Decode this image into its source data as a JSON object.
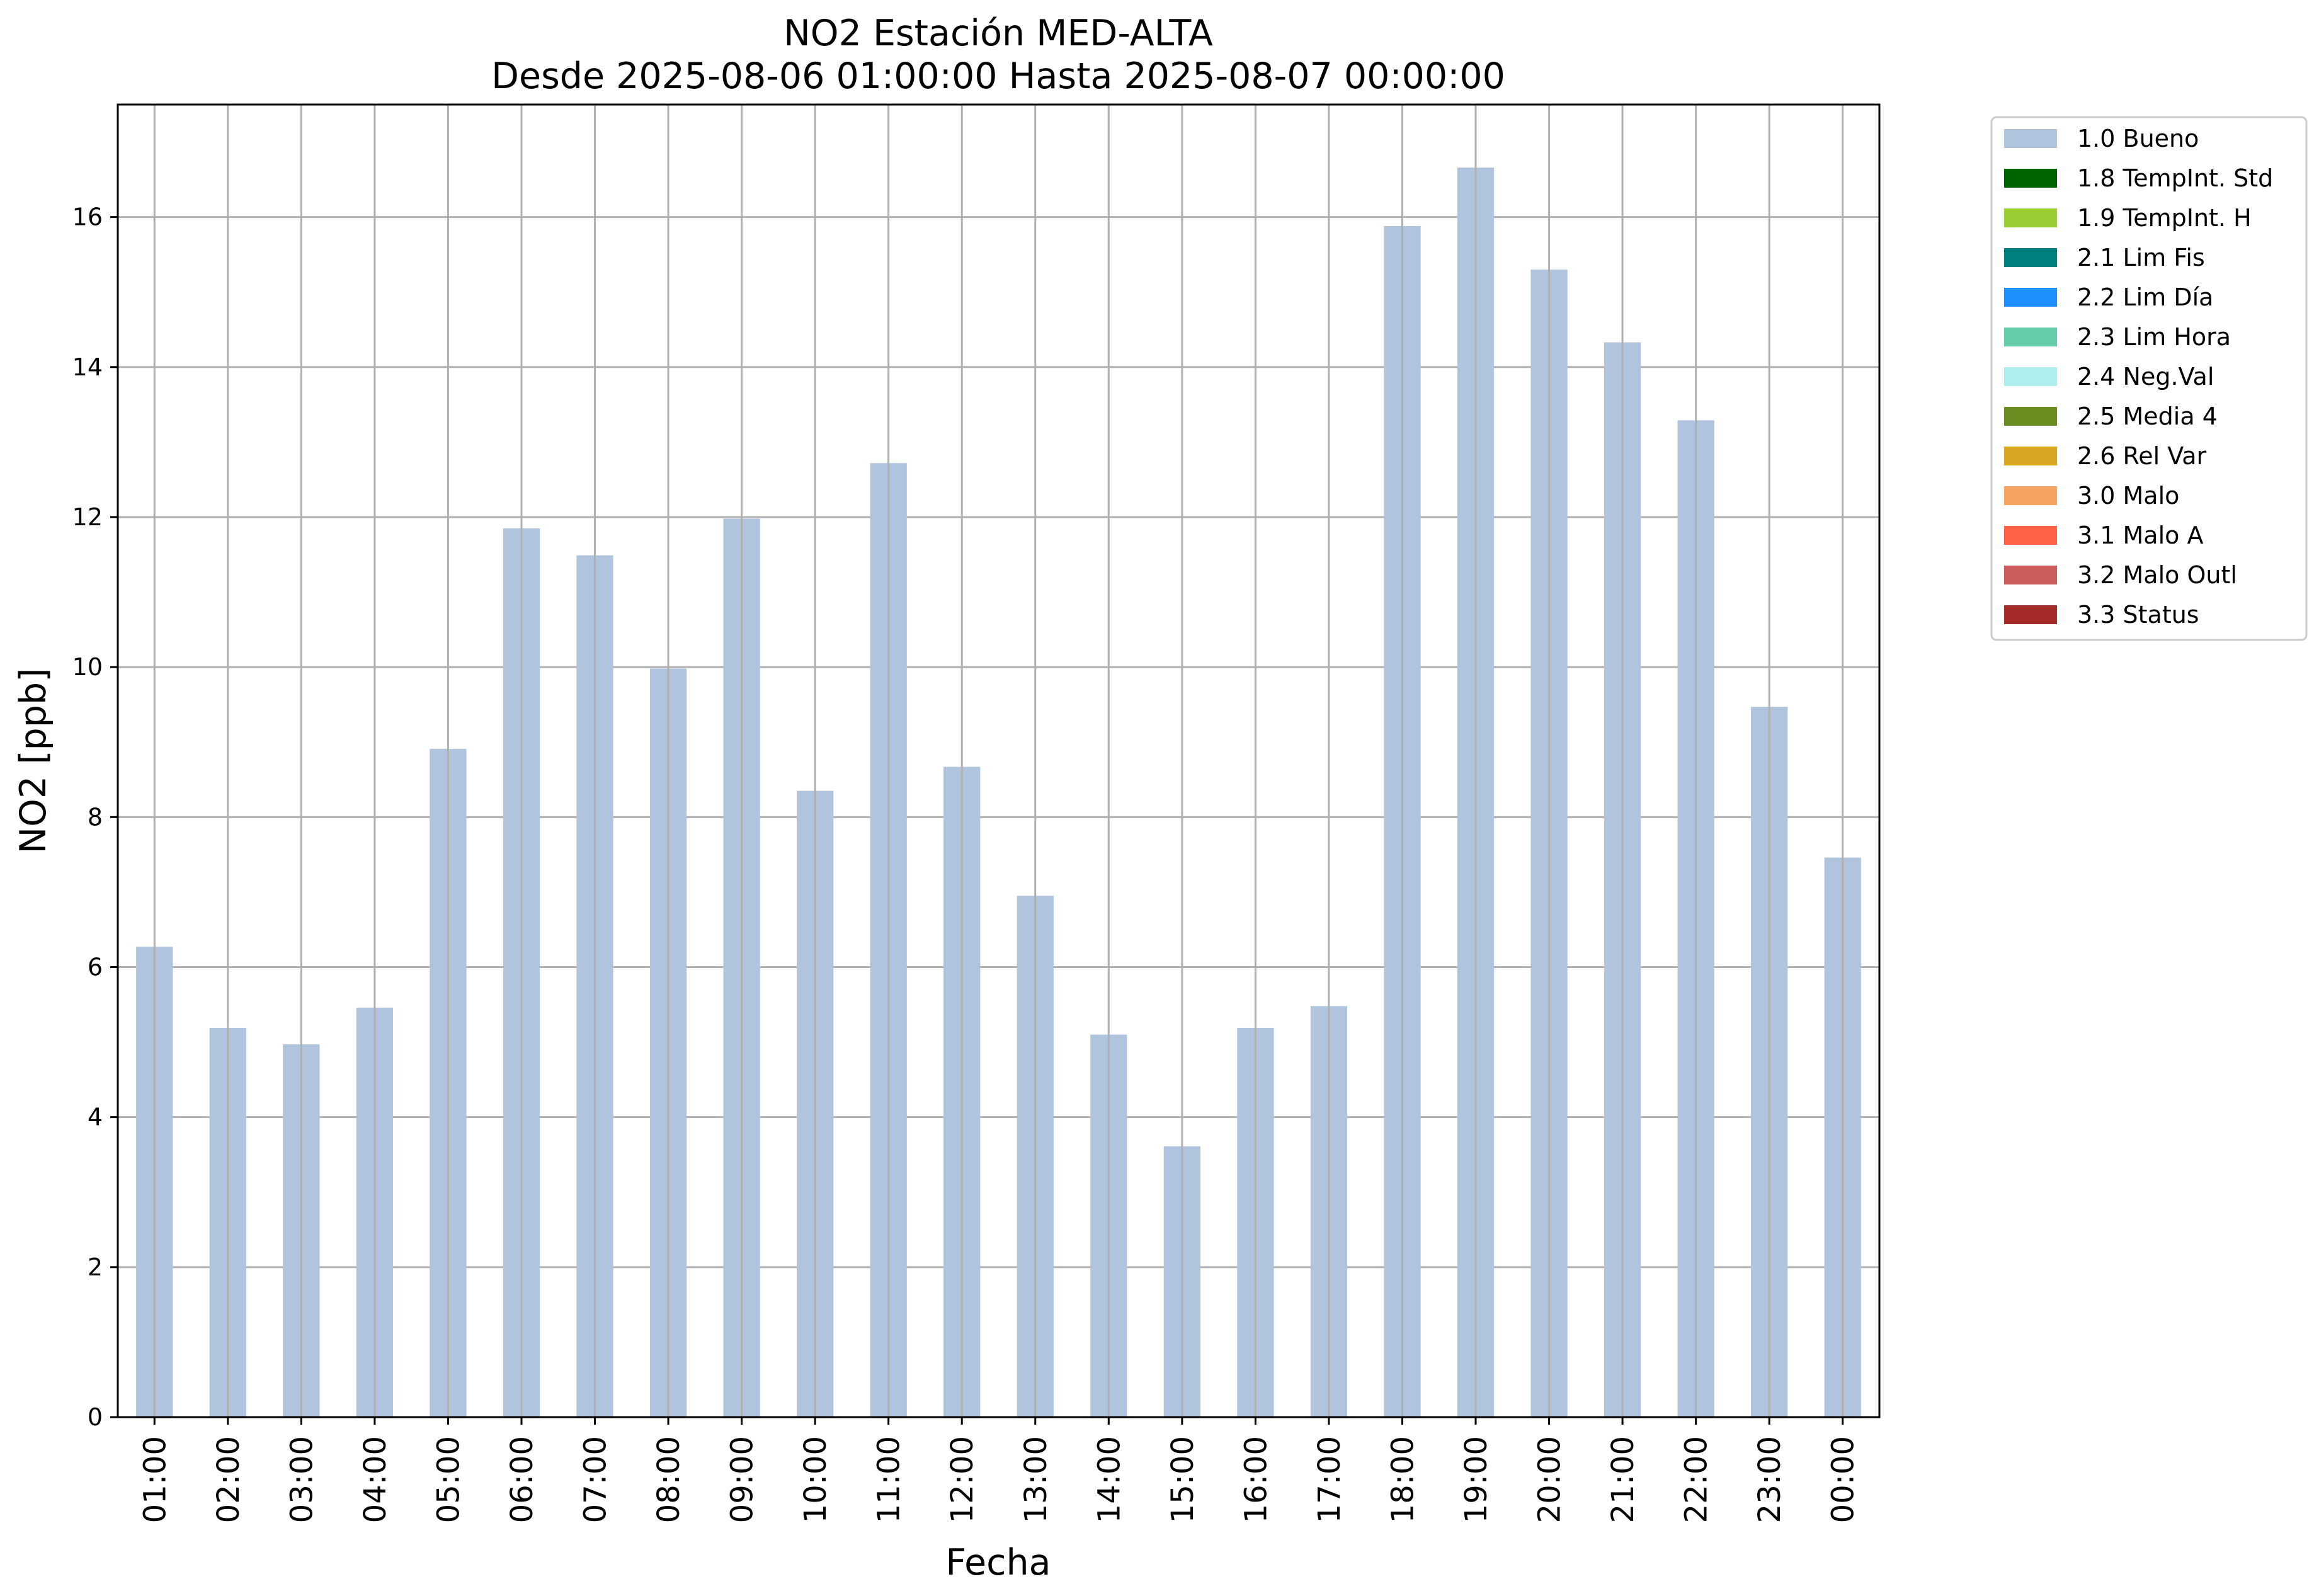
{
  "chart_data": {
    "type": "bar",
    "title": "NO2 Estación MED-ALTA",
    "subtitle": "Desde 2025-08-06 01:00:00 Hasta 2025-08-07 00:00:00",
    "xlabel": "Fecha",
    "ylabel": "NO2 [ppb]",
    "ylim": [
      0,
      17.5
    ],
    "yticks": [
      "0",
      "2",
      "4",
      "6",
      "8",
      "10",
      "12",
      "14",
      "16"
    ],
    "categories": [
      "01:00",
      "02:00",
      "03:00",
      "04:00",
      "05:00",
      "06:00",
      "07:00",
      "08:00",
      "09:00",
      "10:00",
      "11:00",
      "12:00",
      "13:00",
      "14:00",
      "15:00",
      "16:00",
      "17:00",
      "18:00",
      "19:00",
      "20:00",
      "21:00",
      "22:00",
      "23:00",
      "00:00"
    ],
    "series": [
      {
        "name": "1.0 Bueno",
        "color": "#b0c4de",
        "values": [
          6.27,
          5.19,
          4.97,
          5.46,
          8.91,
          11.85,
          11.49,
          9.98,
          11.98,
          8.35,
          12.72,
          8.67,
          6.95,
          5.1,
          3.61,
          5.19,
          5.48,
          15.88,
          16.66,
          15.3,
          14.33,
          13.29,
          9.47,
          7.46
        ]
      }
    ],
    "grid": true,
    "legend_position": "outside-top-right",
    "legend": [
      {
        "label": "1.0 Bueno",
        "color": "#b0c4de"
      },
      {
        "label": "1.8 TempInt. Std",
        "color": "#006400"
      },
      {
        "label": "1.9 TempInt. H",
        "color": "#9acd32"
      },
      {
        "label": "2.1 Lim Fis",
        "color": "#008080"
      },
      {
        "label": "2.2 Lim Día",
        "color": "#1e90ff"
      },
      {
        "label": "2.3 Lim Hora",
        "color": "#66cdaa"
      },
      {
        "label": "2.4 Neg.Val",
        "color": "#afeeee"
      },
      {
        "label": "2.5 Media 4",
        "color": "#6b8e23"
      },
      {
        "label": "2.6 Rel Var",
        "color": "#daa520"
      },
      {
        "label": "3.0 Malo",
        "color": "#f4a460"
      },
      {
        "label": "3.1 Malo A",
        "color": "#ff6347"
      },
      {
        "label": "3.2 Malo Outl",
        "color": "#cd5c5c"
      },
      {
        "label": "3.3 Status",
        "color": "#a52a2a"
      }
    ]
  }
}
